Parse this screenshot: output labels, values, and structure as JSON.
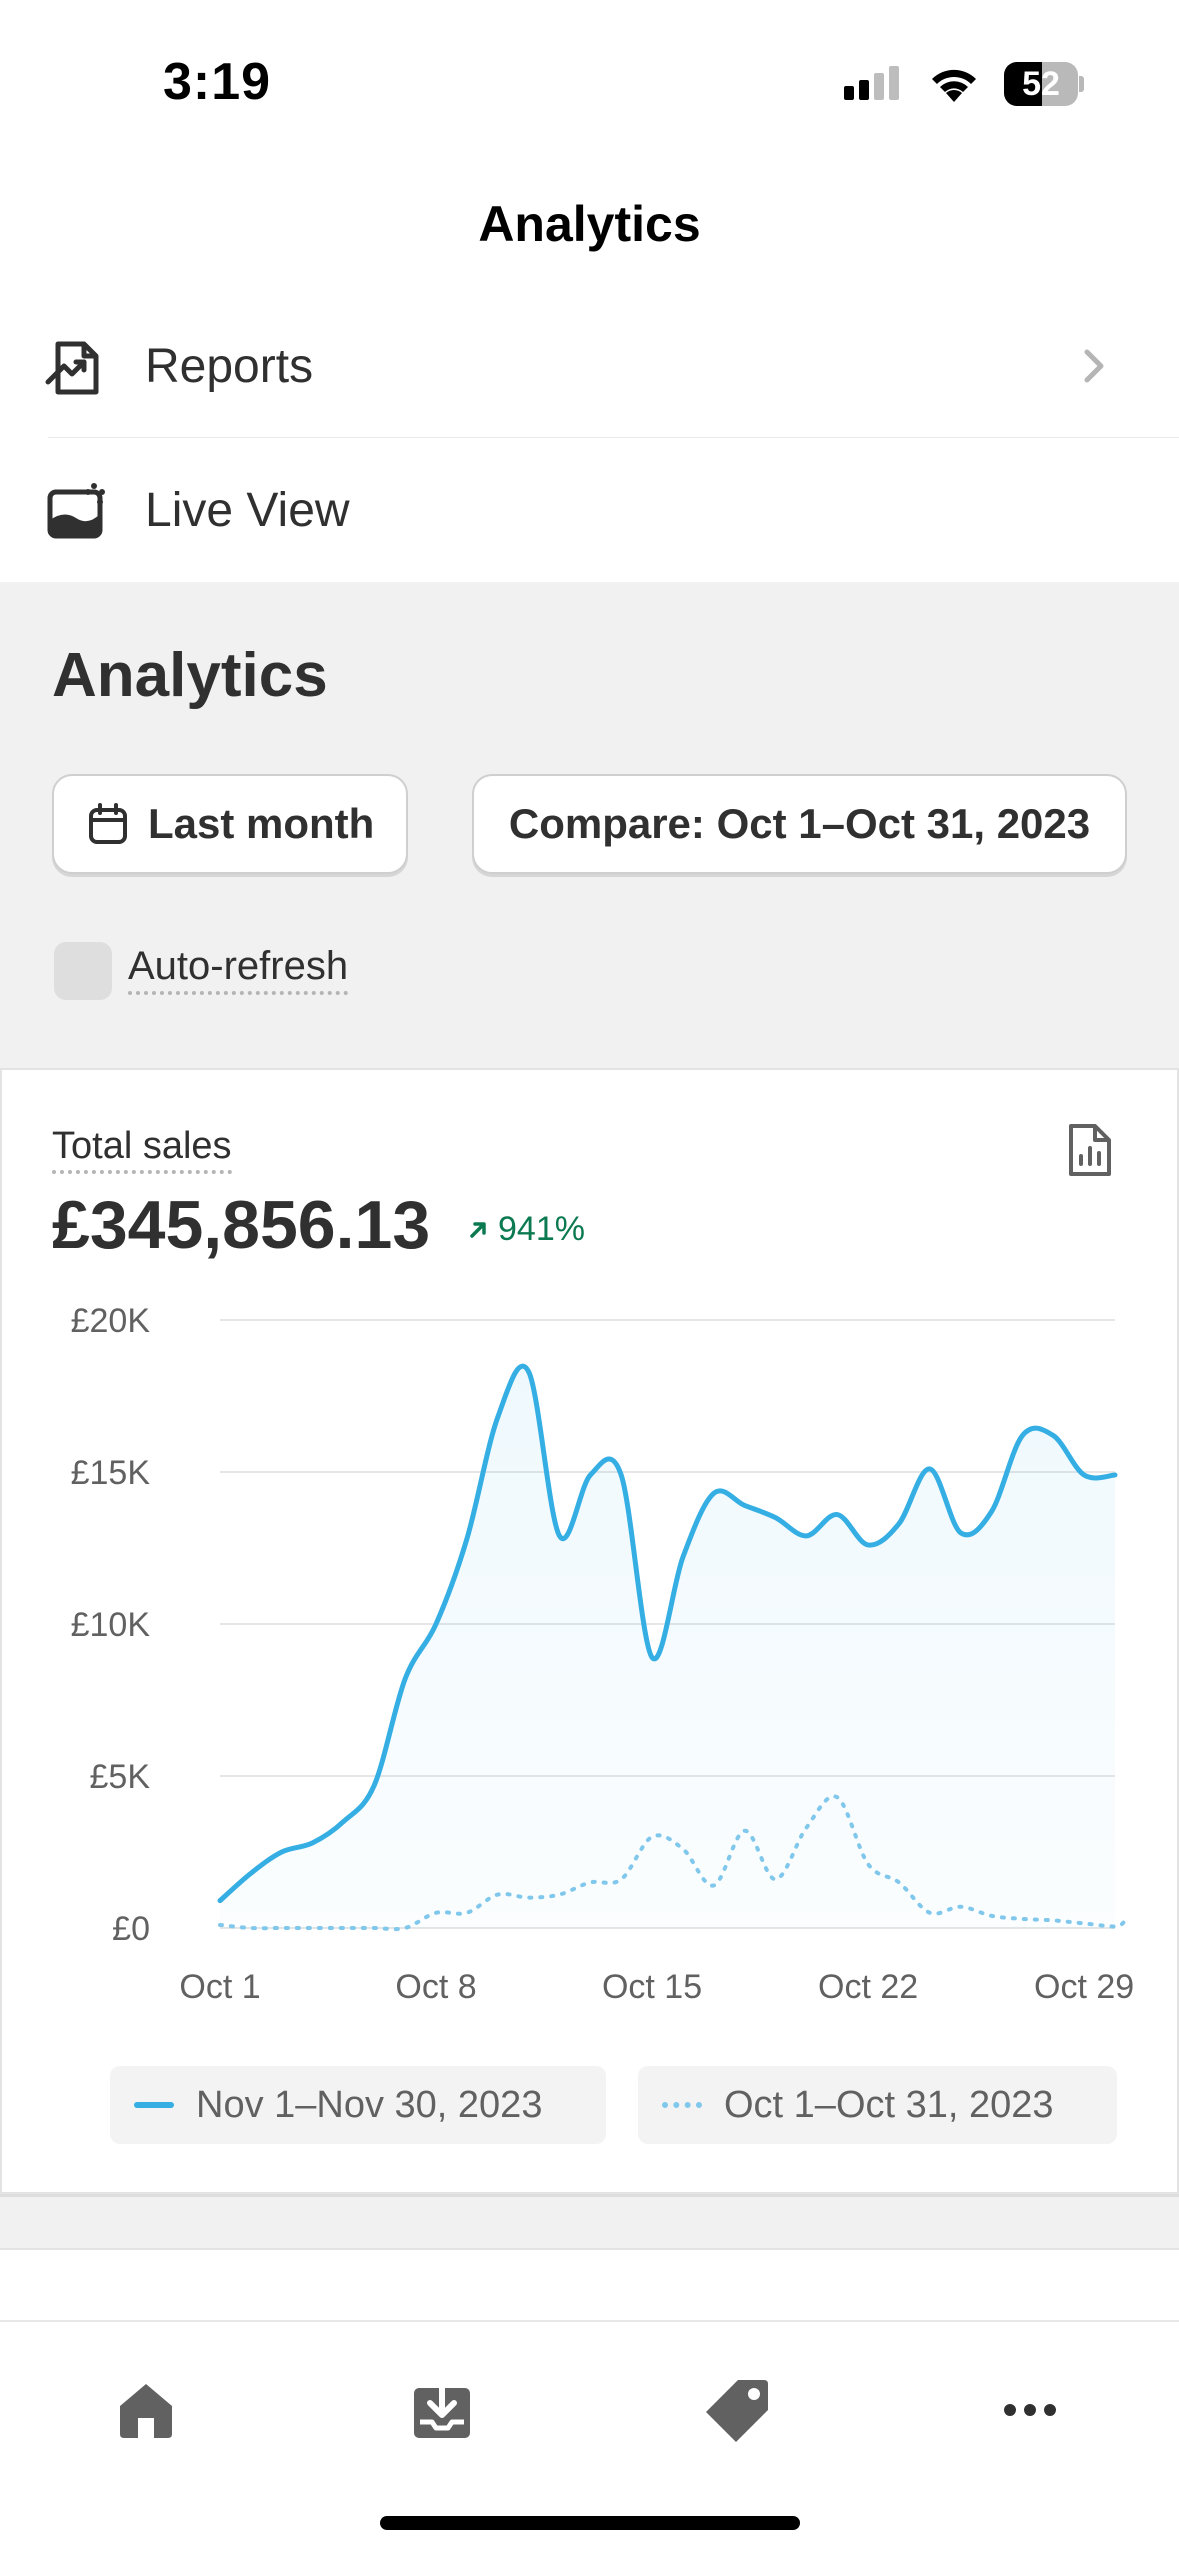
{
  "status_bar": {
    "time": "3:19",
    "battery": "52",
    "battery_level": 0.52
  },
  "nav": {
    "title": "Analytics"
  },
  "menu": {
    "items": [
      {
        "label": "Reports",
        "icon": "report-chart-icon"
      },
      {
        "label": "Live View",
        "icon": "live-view-icon"
      }
    ]
  },
  "analytics": {
    "heading": "Analytics",
    "date_filter": "Last month",
    "compare_filter": "Compare: Oct 1–Oct 31, 2023",
    "auto_refresh_label": "Auto-refresh"
  },
  "total_sales": {
    "title": "Total sales",
    "value": "£345,856.13",
    "delta": "941%"
  },
  "legend": {
    "current": "Nov 1–Nov 30, 2023",
    "previous": "Oct 1–Oct 31, 2023"
  },
  "colors": {
    "accent": "#35aee3",
    "compare": "#80c7ec",
    "positive": "#0c7a51"
  },
  "chart_data": {
    "type": "line",
    "ylim": [
      0,
      20000
    ],
    "y_ticks": [
      "£20K",
      "£15K",
      "£10K",
      "£5K",
      "£0"
    ],
    "y_tick_values": [
      20000,
      15000,
      10000,
      5000,
      0
    ],
    "x_ticks": [
      "Oct 1",
      "Oct 8",
      "Oct 15",
      "Oct 22",
      "Oct 29"
    ],
    "x_tick_days": [
      1,
      8,
      15,
      22,
      29
    ],
    "x_range": [
      1,
      30
    ],
    "grid": true,
    "legend": "bottom",
    "series": [
      {
        "name": "Nov 1–Nov 30, 2023",
        "style": "solid",
        "x": [
          1,
          2,
          3,
          4,
          5,
          6,
          7,
          8,
          9,
          10,
          11,
          12,
          13,
          14,
          15,
          16,
          17,
          18,
          19,
          20,
          21,
          22,
          23,
          24,
          25,
          26,
          27,
          28,
          29,
          30
        ],
        "values": [
          900,
          1800,
          2500,
          2800,
          3500,
          4700,
          8200,
          10000,
          12800,
          16800,
          18300,
          12900,
          14900,
          14900,
          8900,
          12200,
          14300,
          13900,
          13500,
          12900,
          13600,
          12600,
          13300,
          15100,
          13000,
          13700,
          16200,
          16200,
          14900,
          14900
        ]
      },
      {
        "name": "Oct 1–Oct 31, 2023",
        "style": "dotted",
        "x": [
          1,
          2,
          3,
          4,
          5,
          6,
          7,
          8,
          9,
          10,
          11,
          12,
          13,
          14,
          15,
          16,
          17,
          18,
          19,
          20,
          21,
          22,
          23,
          24,
          25,
          26,
          27,
          28,
          29,
          30,
          31
        ],
        "values": [
          100,
          0,
          0,
          0,
          0,
          0,
          0,
          500,
          500,
          1100,
          1000,
          1100,
          1500,
          1600,
          3000,
          2600,
          1400,
          3200,
          1600,
          3300,
          4300,
          2100,
          1500,
          500,
          700,
          400,
          300,
          250,
          150,
          50,
          200
        ]
      }
    ]
  }
}
